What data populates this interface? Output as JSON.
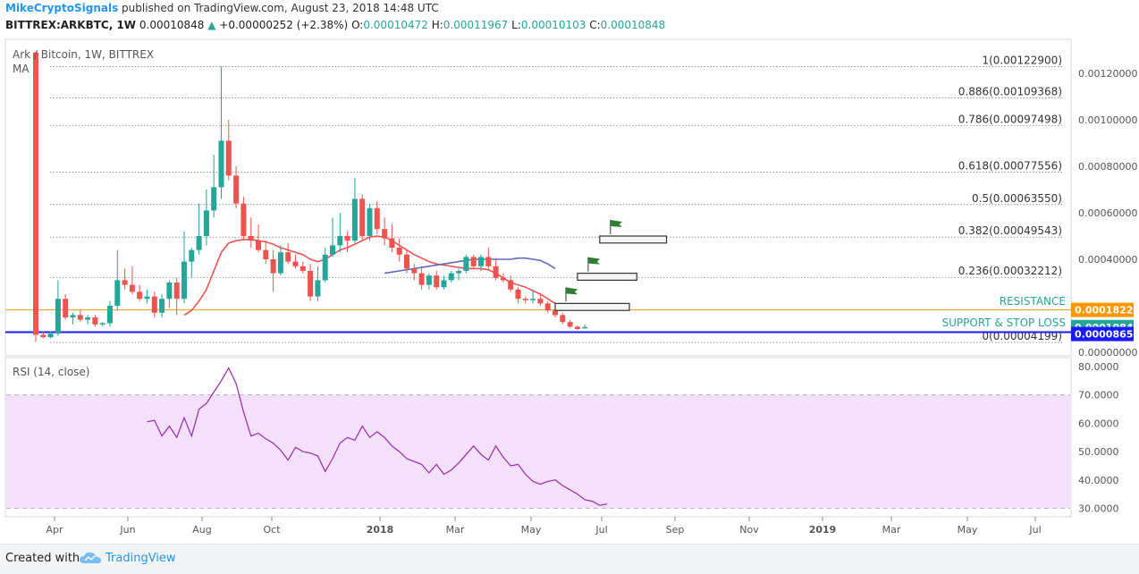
{
  "header": {
    "author": "MikeCryptoSignals",
    "published": "published on TradingView.com, August 23, 2018 14:48 UTC",
    "symbol": "BITTREX:ARKBTC, 1W",
    "last": "0.00010848",
    "change": "+0.00000252 (+2.38%)",
    "o_label": "O:",
    "o_value": "0.00010472",
    "h_label": "H:",
    "h_value": "0.00011967",
    "l_label": "L:",
    "l_value": "0.00010103",
    "c_label": "C:",
    "c_value": "0.00010848"
  },
  "footer": {
    "created": "Created with",
    "brand": "TradingView"
  },
  "chart_data": [
    {
      "type": "candlestick",
      "legend": "Ark / Bitcoin, 1W, BITTREX",
      "legend2": "MA",
      "x_ticks": [
        "Apr",
        "Jun",
        "Aug",
        "Oct",
        "2018",
        "Mar",
        "May",
        "Jul",
        "Sep",
        "Nov",
        "2019",
        "Mar",
        "May",
        "Jul"
      ],
      "y_ticks": [
        "0.00120000",
        "0.00100000",
        "0.00080000",
        "0.00060000",
        "0.00040000",
        "0.00000000"
      ],
      "ylim": [
        0.0,
        0.00128
      ],
      "fib_levels": [
        {
          "label": "1(0.00122900)",
          "value": 0.001229
        },
        {
          "label": "0.886(0.00109368)",
          "value": 0.00109368
        },
        {
          "label": "0.786(0.00097498)",
          "value": 0.00097498
        },
        {
          "label": "0.618(0.00077556)",
          "value": 0.00077556
        },
        {
          "label": "0.5(0.00063550)",
          "value": 0.0006355
        },
        {
          "label": "0.382(0.00049543)",
          "value": 0.00049543
        },
        {
          "label": "0.236(0.00032212)",
          "value": 0.00032212
        },
        {
          "label": "0(0.00004199)",
          "value": 4.199e-05
        }
      ],
      "resistance": {
        "label": "RESISTANCE",
        "value": 0.0001822,
        "badge": "0.00018220",
        "color": "#ff9800"
      },
      "support": {
        "label": "SUPPORT & STOP LOSS",
        "value": 8.656e-05,
        "badge": "0.00008656",
        "color": "#1a1aff"
      },
      "last_badge": {
        "text": "0.00010848",
        "value": 0.00010848,
        "color": "#26a69a"
      },
      "up_color": "#26a69a",
      "down_color": "#ef5350",
      "candles": [
        {
          "o": 0.00129,
          "h": 0.00129,
          "l": 4.5e-05,
          "c": 7.5e-05
        },
        {
          "o": 7.5e-05,
          "h": 9e-05,
          "l": 6e-05,
          "c": 6.5e-05
        },
        {
          "o": 6.5e-05,
          "h": 9e-05,
          "l": 6e-05,
          "c": 8e-05
        },
        {
          "o": 8e-05,
          "h": 0.00031,
          "l": 7e-05,
          "c": 0.00023
        },
        {
          "o": 0.00023,
          "h": 0.00025,
          "l": 0.00014,
          "c": 0.00015
        },
        {
          "o": 0.00015,
          "h": 0.00017,
          "l": 0.00012,
          "c": 0.00016
        },
        {
          "o": 0.00016,
          "h": 0.00018,
          "l": 0.00013,
          "c": 0.00014
        },
        {
          "o": 0.00014,
          "h": 0.00016,
          "l": 0.00012,
          "c": 0.00015
        },
        {
          "o": 0.00015,
          "h": 0.00016,
          "l": 0.00011,
          "c": 0.00012
        },
        {
          "o": 0.00012,
          "h": 0.00013,
          "l": 0.00011,
          "c": 0.000125
        },
        {
          "o": 0.000125,
          "h": 0.00022,
          "l": 0.00011,
          "c": 0.0002
        },
        {
          "o": 0.0002,
          "h": 0.00044,
          "l": 0.00018,
          "c": 0.00031
        },
        {
          "o": 0.00031,
          "h": 0.00036,
          "l": 0.00027,
          "c": 0.00029
        },
        {
          "o": 0.00029,
          "h": 0.00037,
          "l": 0.00025,
          "c": 0.00026
        },
        {
          "o": 0.00026,
          "h": 0.00029,
          "l": 0.00022,
          "c": 0.00023
        },
        {
          "o": 0.00023,
          "h": 0.00027,
          "l": 0.00021,
          "c": 0.00024
        },
        {
          "o": 0.00024,
          "h": 0.00026,
          "l": 0.00015,
          "c": 0.00017
        },
        {
          "o": 0.00017,
          "h": 0.00025,
          "l": 0.00015,
          "c": 0.00023
        },
        {
          "o": 0.00023,
          "h": 0.00031,
          "l": 0.00019,
          "c": 0.0003
        },
        {
          "o": 0.0003,
          "h": 0.00032,
          "l": 0.00016,
          "c": 0.00023
        },
        {
          "o": 0.00023,
          "h": 0.00052,
          "l": 0.00021,
          "c": 0.00039
        },
        {
          "o": 0.00039,
          "h": 0.00045,
          "l": 0.00032,
          "c": 0.00044
        },
        {
          "o": 0.00044,
          "h": 0.00064,
          "l": 0.00042,
          "c": 0.0005
        },
        {
          "o": 0.0005,
          "h": 0.0007,
          "l": 0.00046,
          "c": 0.00061
        },
        {
          "o": 0.00061,
          "h": 0.00085,
          "l": 0.00058,
          "c": 0.00071
        },
        {
          "o": 0.00071,
          "h": 0.00123,
          "l": 0.00066,
          "c": 0.00091
        },
        {
          "o": 0.00091,
          "h": 0.001,
          "l": 0.00074,
          "c": 0.00076
        },
        {
          "o": 0.00076,
          "h": 0.0008,
          "l": 0.00062,
          "c": 0.00064
        },
        {
          "o": 0.00064,
          "h": 0.00067,
          "l": 0.00048,
          "c": 0.0005
        },
        {
          "o": 0.0005,
          "h": 0.00058,
          "l": 0.00045,
          "c": 0.00048
        },
        {
          "o": 0.00048,
          "h": 0.00055,
          "l": 0.00043,
          "c": 0.00044
        },
        {
          "o": 0.00044,
          "h": 0.00048,
          "l": 0.00038,
          "c": 0.0004
        },
        {
          "o": 0.0004,
          "h": 0.00044,
          "l": 0.00026,
          "c": 0.00034
        },
        {
          "o": 0.00034,
          "h": 0.00046,
          "l": 0.00033,
          "c": 0.00043
        },
        {
          "o": 0.00043,
          "h": 0.00047,
          "l": 0.00038,
          "c": 0.00039
        },
        {
          "o": 0.00039,
          "h": 0.00042,
          "l": 0.00036,
          "c": 0.00037
        },
        {
          "o": 0.00037,
          "h": 0.00039,
          "l": 0.00034,
          "c": 0.00035
        },
        {
          "o": 0.00035,
          "h": 0.00038,
          "l": 0.00022,
          "c": 0.00024
        },
        {
          "o": 0.00024,
          "h": 0.00037,
          "l": 0.00022,
          "c": 0.00031
        },
        {
          "o": 0.00031,
          "h": 0.00045,
          "l": 0.0003,
          "c": 0.00042
        },
        {
          "o": 0.00042,
          "h": 0.00058,
          "l": 0.00041,
          "c": 0.00046
        },
        {
          "o": 0.00046,
          "h": 0.0006,
          "l": 0.00043,
          "c": 0.0005
        },
        {
          "o": 0.0005,
          "h": 0.00052,
          "l": 0.00043,
          "c": 0.00048
        },
        {
          "o": 0.00048,
          "h": 0.00075,
          "l": 0.00047,
          "c": 0.00066
        },
        {
          "o": 0.00066,
          "h": 0.00068,
          "l": 0.00048,
          "c": 0.0005
        },
        {
          "o": 0.0005,
          "h": 0.00064,
          "l": 0.00048,
          "c": 0.00062
        },
        {
          "o": 0.00062,
          "h": 0.00065,
          "l": 0.00051,
          "c": 0.00053
        },
        {
          "o": 0.00053,
          "h": 0.00058,
          "l": 0.00046,
          "c": 0.00049
        },
        {
          "o": 0.00049,
          "h": 0.00055,
          "l": 0.00043,
          "c": 0.00045
        },
        {
          "o": 0.00045,
          "h": 0.00049,
          "l": 0.00039,
          "c": 0.00042
        },
        {
          "o": 0.00042,
          "h": 0.00044,
          "l": 0.00034,
          "c": 0.00036
        },
        {
          "o": 0.00036,
          "h": 0.00038,
          "l": 0.00031,
          "c": 0.00034
        },
        {
          "o": 0.00034,
          "h": 0.00037,
          "l": 0.00027,
          "c": 0.00029
        },
        {
          "o": 0.00029,
          "h": 0.00034,
          "l": 0.00027,
          "c": 0.00033
        },
        {
          "o": 0.00033,
          "h": 0.00035,
          "l": 0.00027,
          "c": 0.00028
        },
        {
          "o": 0.00028,
          "h": 0.00033,
          "l": 0.00027,
          "c": 0.00031
        },
        {
          "o": 0.00031,
          "h": 0.00035,
          "l": 0.0003,
          "c": 0.00034
        },
        {
          "o": 0.00034,
          "h": 0.00036,
          "l": 0.00031,
          "c": 0.00035
        },
        {
          "o": 0.00035,
          "h": 0.00042,
          "l": 0.00034,
          "c": 0.00041
        },
        {
          "o": 0.00041,
          "h": 0.00042,
          "l": 0.00036,
          "c": 0.00037
        },
        {
          "o": 0.00037,
          "h": 0.00042,
          "l": 0.00035,
          "c": 0.00041
        },
        {
          "o": 0.00041,
          "h": 0.00045,
          "l": 0.00036,
          "c": 0.00037
        },
        {
          "o": 0.00037,
          "h": 0.0004,
          "l": 0.00031,
          "c": 0.00032
        },
        {
          "o": 0.00032,
          "h": 0.00034,
          "l": 0.0003,
          "c": 0.00031
        },
        {
          "o": 0.00031,
          "h": 0.00033,
          "l": 0.00026,
          "c": 0.00027
        },
        {
          "o": 0.00027,
          "h": 0.00028,
          "l": 0.00021,
          "c": 0.00023
        },
        {
          "o": 0.00023,
          "h": 0.00024,
          "l": 0.00021,
          "c": 0.000225
        },
        {
          "o": 0.000225,
          "h": 0.00027,
          "l": 0.00021,
          "c": 0.00023
        },
        {
          "o": 0.00023,
          "h": 0.00025,
          "l": 0.0002,
          "c": 0.00021
        },
        {
          "o": 0.00021,
          "h": 0.00022,
          "l": 0.00017,
          "c": 0.00018
        },
        {
          "o": 0.00018,
          "h": 0.00019,
          "l": 0.00015,
          "c": 0.00016
        },
        {
          "o": 0.00016,
          "h": 0.00017,
          "l": 0.00012,
          "c": 0.00013
        },
        {
          "o": 0.00013,
          "h": 0.00014,
          "l": 0.000105,
          "c": 0.00011
        },
        {
          "o": 0.00011,
          "h": 0.000115,
          "l": 9.5e-05,
          "c": 0.0001
        },
        {
          "o": 0.000104,
          "h": 0.0001197,
          "l": 0.000101,
          "c": 0.00010848
        }
      ],
      "ma_red": [
        [
          20,
          0.00016
        ],
        [
          21,
          0.00018
        ],
        [
          22,
          0.00022
        ],
        [
          23,
          0.00027
        ],
        [
          24,
          0.00035
        ],
        [
          25,
          0.00043
        ],
        [
          26,
          0.00047
        ],
        [
          27,
          0.00048
        ],
        [
          28,
          0.000485
        ],
        [
          29,
          0.000485
        ],
        [
          30,
          0.00048
        ],
        [
          31,
          0.000475
        ],
        [
          32,
          0.000465
        ],
        [
          33,
          0.00045
        ],
        [
          34,
          0.00044
        ],
        [
          35,
          0.00043
        ],
        [
          36,
          0.00042
        ],
        [
          37,
          0.0004
        ],
        [
          38,
          0.00039
        ],
        [
          39,
          0.0004
        ],
        [
          40,
          0.00042
        ],
        [
          41,
          0.00044
        ],
        [
          42,
          0.00045
        ],
        [
          43,
          0.000465
        ],
        [
          44,
          0.00048
        ],
        [
          45,
          0.000495
        ],
        [
          46,
          0.0005
        ],
        [
          47,
          0.000495
        ],
        [
          48,
          0.00048
        ],
        [
          49,
          0.00046
        ],
        [
          50,
          0.00044
        ],
        [
          51,
          0.00042
        ],
        [
          52,
          0.000405
        ],
        [
          53,
          0.00039
        ],
        [
          54,
          0.00038
        ],
        [
          55,
          0.000375
        ],
        [
          56,
          0.00037
        ],
        [
          57,
          0.000365
        ],
        [
          58,
          0.00036
        ],
        [
          59,
          0.00036
        ],
        [
          60,
          0.00036
        ],
        [
          61,
          0.000355
        ],
        [
          62,
          0.00034
        ],
        [
          63,
          0.00032
        ],
        [
          64,
          0.0003
        ],
        [
          65,
          0.00029
        ],
        [
          66,
          0.00028
        ],
        [
          67,
          0.000265
        ],
        [
          68,
          0.00025
        ],
        [
          69,
          0.00023
        ],
        [
          70,
          0.00021
        ]
      ],
      "ma_blue": [
        [
          47,
          0.00034
        ],
        [
          48,
          0.000345
        ],
        [
          49,
          0.00035
        ],
        [
          50,
          0.000355
        ],
        [
          51,
          0.00036
        ],
        [
          52,
          0.000365
        ],
        [
          53,
          0.00037
        ],
        [
          54,
          0.000375
        ],
        [
          55,
          0.00038
        ],
        [
          56,
          0.000385
        ],
        [
          57,
          0.00039
        ],
        [
          58,
          0.000395
        ],
        [
          59,
          0.0004
        ],
        [
          60,
          0.0004
        ],
        [
          61,
          0.0004
        ],
        [
          62,
          0.0004
        ],
        [
          63,
          0.0004
        ],
        [
          64,
          0.0004
        ],
        [
          65,
          0.000405
        ],
        [
          66,
          0.000405
        ],
        [
          67,
          0.0004
        ],
        [
          68,
          0.000395
        ],
        [
          69,
          0.00038
        ],
        [
          70,
          0.00036
        ]
      ],
      "flag_boxes": [
        {
          "start": 70,
          "end": 80,
          "low": 0.00018,
          "high": 0.00021
        },
        {
          "start": 73,
          "end": 81,
          "low": 0.00031,
          "high": 0.00034
        },
        {
          "start": 76,
          "end": 85,
          "low": 0.00047,
          "high": 0.0005
        }
      ]
    },
    {
      "type": "line",
      "legend": "RSI (14, close)",
      "y_ticks": [
        "80.0000",
        "70.0000",
        "60.0000",
        "50.0000",
        "40.0000",
        "30.0000"
      ],
      "ylim": [
        27,
        82
      ],
      "band": [
        30,
        70
      ],
      "line_color": "#9c27b0",
      "band_color": "#f3e0fb",
      "points": [
        [
          15,
          60.5
        ],
        [
          16,
          61
        ],
        [
          17,
          55.5
        ],
        [
          18,
          59
        ],
        [
          19,
          55
        ],
        [
          20,
          62
        ],
        [
          21,
          55.5
        ],
        [
          22,
          65
        ],
        [
          23,
          67
        ],
        [
          24,
          71
        ],
        [
          25,
          75
        ],
        [
          26,
          79.5
        ],
        [
          27,
          74
        ],
        [
          28,
          64
        ],
        [
          29,
          55.5
        ],
        [
          30,
          56.5
        ],
        [
          31,
          54.5
        ],
        [
          32,
          53
        ],
        [
          33,
          50.5
        ],
        [
          34,
          47
        ],
        [
          35,
          51.5
        ],
        [
          36,
          50
        ],
        [
          37,
          49.5
        ],
        [
          38,
          48.5
        ],
        [
          39,
          43
        ],
        [
          40,
          47.5
        ],
        [
          41,
          53
        ],
        [
          42,
          55
        ],
        [
          43,
          54
        ],
        [
          44,
          59
        ],
        [
          45,
          55
        ],
        [
          46,
          57
        ],
        [
          47,
          55
        ],
        [
          48,
          52
        ],
        [
          49,
          50
        ],
        [
          50,
          47.5
        ],
        [
          51,
          46.5
        ],
        [
          52,
          45.5
        ],
        [
          53,
          42.5
        ],
        [
          54,
          45.5
        ],
        [
          55,
          42
        ],
        [
          56,
          43.5
        ],
        [
          57,
          46
        ],
        [
          58,
          49
        ],
        [
          59,
          52
        ],
        [
          60,
          49
        ],
        [
          61,
          47
        ],
        [
          62,
          52
        ],
        [
          63,
          48
        ],
        [
          64,
          45
        ],
        [
          65,
          45.5
        ],
        [
          66,
          42
        ],
        [
          67,
          39.5
        ],
        [
          68,
          38.5
        ],
        [
          69,
          39.5
        ],
        [
          70,
          40
        ],
        [
          71,
          38
        ],
        [
          72,
          36.5
        ],
        [
          73,
          35
        ],
        [
          74,
          33
        ],
        [
          75,
          32.5
        ],
        [
          76,
          31
        ],
        [
          77,
          31.5
        ]
      ]
    }
  ]
}
